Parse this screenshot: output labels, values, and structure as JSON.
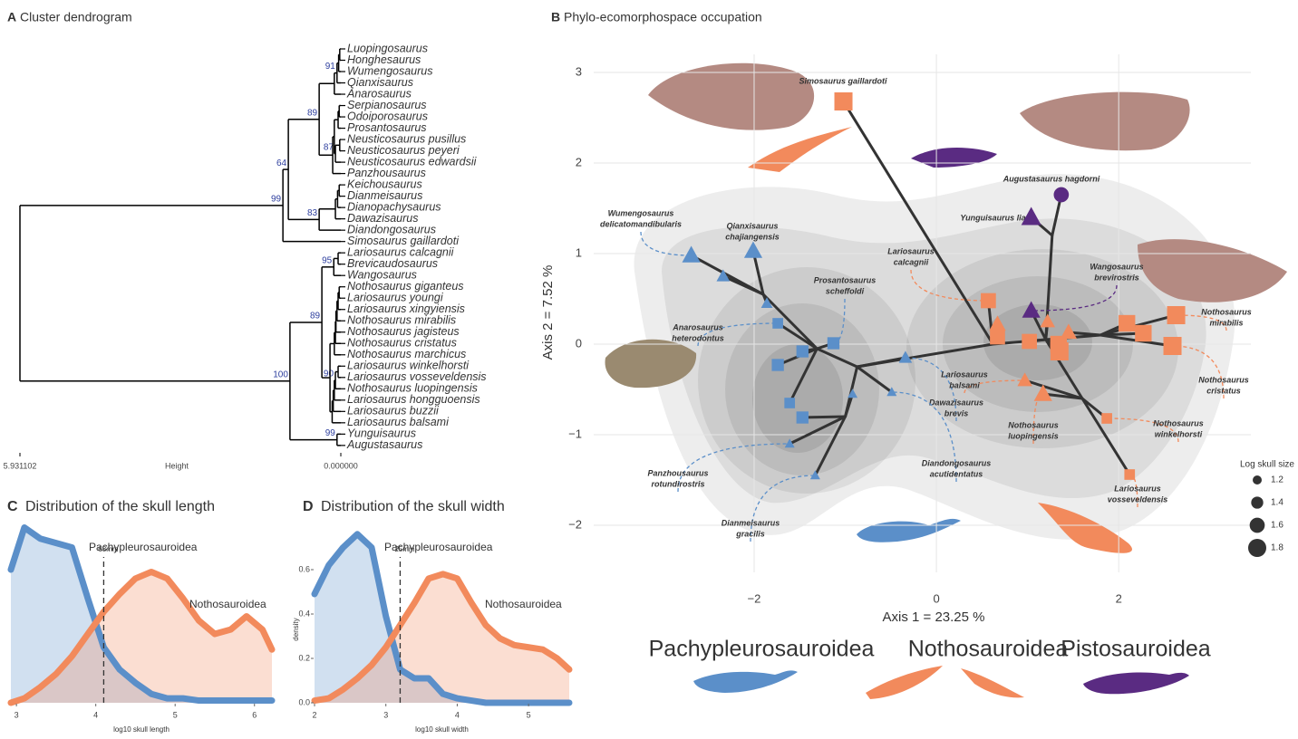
{
  "chart_data": [
    {
      "type": "dendrogram",
      "panel": "A",
      "title": "Cluster dendrogram",
      "leaves": [
        "Luopingosaurus",
        "Honghesaurus",
        "Wumengosaurus",
        "Qianxisaurus",
        "Anarosaurus",
        "Serpianosaurus",
        "Odoiporosaurus",
        "Prosantosaurus",
        "Neusticosaurus pusillus",
        "Neusticosaurus peyeri",
        "Neusticosaurus edwardsii",
        "Panzhousaurus",
        "Keichousaurus",
        "Dianmeisaurus",
        "Dianopachysaurus",
        "Dawazisaurus",
        "Diandongosaurus",
        "Simosaurus gaillardoti",
        "Lariosaurus calcagnii",
        "Brevicaudosaurus",
        "Wangosaurus",
        "Nothosaurus giganteus",
        "Lariosaurus youngi",
        "Lariosaurus xingyiensis",
        "Nothosaurus mirabilis",
        "Nothosaurus jagisteus",
        "Nothosaurus cristatus",
        "Nothosaurus marchicus",
        "Lariosaurus winkelhorsti",
        "Lariosaurus vosseveldensis",
        "Nothosaurus luopingensis",
        "Lariosaurus hongguoensis",
        "Lariosaurus buzzii",
        "Lariosaurus balsami",
        "Yunguisaurus",
        "Augustasaurus"
      ],
      "leaf_colors": [
        "#5b8fc9",
        "#5b8fc9",
        "#5b8fc9",
        "#5b8fc9",
        "#5b8fc9",
        "#5b8fc9",
        "#5b8fc9",
        "#5b8fc9",
        "#5b8fc9",
        "#5b8fc9",
        "#5b8fc9",
        "#5b8fc9",
        "#5b8fc9",
        "#5b8fc9",
        "#5b8fc9",
        "#5b8fc9",
        "#5b8fc9",
        "#f28a5c",
        "#f28a5c",
        "#f28a5c",
        "#5a2b82",
        "#f28a5c",
        "#f28a5c",
        "#f28a5c",
        "#f28a5c",
        "#f28a5c",
        "#f28a5c",
        "#f28a5c",
        "#f28a5c",
        "#f28a5c",
        "#f28a5c",
        "#f28a5c",
        "#f28a5c",
        "#f28a5c",
        "#5a2b82",
        "#5a2b82"
      ],
      "merge": [
        [
          -1,
          -2
        ],
        [
          1,
          -3
        ],
        [
          2,
          -4
        ],
        [
          3,
          -5
        ],
        [
          -6,
          -7
        ],
        [
          5,
          -8
        ],
        [
          -9,
          -10
        ],
        [
          7,
          -11
        ],
        [
          6,
          8
        ],
        [
          9,
          -12
        ],
        [
          4,
          10
        ],
        [
          -13,
          -14
        ],
        [
          12,
          -15
        ],
        [
          13,
          -16
        ],
        [
          14,
          -17
        ],
        [
          11,
          15
        ],
        [
          16,
          -18
        ],
        [
          -19,
          -20
        ],
        [
          18,
          -21
        ],
        [
          -22,
          -23
        ],
        [
          20,
          -24
        ],
        [
          21,
          -25
        ],
        [
          22,
          -26
        ],
        [
          23,
          -27
        ],
        [
          24,
          -28
        ],
        [
          -29,
          -30
        ],
        [
          26,
          -31
        ],
        [
          27,
          -32
        ],
        [
          28,
          -33
        ],
        [
          29,
          -34
        ],
        [
          25,
          30
        ],
        [
          19,
          31
        ],
        [
          -35,
          -36
        ],
        [
          32,
          33
        ],
        [
          17,
          34
        ]
      ],
      "height": [
        0.02,
        0.04,
        0.07,
        0.12,
        0.03,
        0.05,
        0.02,
        0.1,
        0.12,
        0.15,
        0.4,
        0.03,
        0.06,
        0.1,
        0.4,
        0.97,
        1.07,
        0.05,
        0.13,
        0.03,
        0.05,
        0.07,
        0.09,
        0.1,
        0.12,
        0.05,
        0.1,
        0.12,
        0.14,
        0.16,
        0.2,
        0.35,
        0.07,
        0.94,
        5.931102
      ],
      "support": [
        null,
        null,
        91,
        null,
        null,
        null,
        null,
        87,
        null,
        null,
        89,
        null,
        null,
        null,
        83,
        64,
        99,
        null,
        95,
        null,
        null,
        null,
        null,
        null,
        null,
        null,
        90,
        null,
        null,
        null,
        null,
        89,
        99,
        100,
        null
      ],
      "xlabel": "Height",
      "xlim": [
        5.931102,
        0
      ],
      "xticks": [
        5.931102,
        {
          "value": 0,
          "label": "0.000000"
        }
      ]
    },
    {
      "type": "scatter",
      "panel": "B",
      "title": "Phylo-ecomorphospace occupation",
      "xlabel": "Axis 1 =  23.25 %",
      "ylabel": "Axis 2 =  7.52 %",
      "xlim": [
        -3.76,
        3.45
      ],
      "ylim": [
        -2.52,
        3.2
      ],
      "xticks": [
        {
          "value": -2,
          "label": "−2"
        },
        0,
        2
      ],
      "yticks": [
        {
          "value": -2,
          "label": "−2"
        },
        {
          "value": -1,
          "label": "−1"
        },
        0,
        1,
        2,
        3
      ],
      "grid": true,
      "groups": [
        {
          "name": "Pachypleurosauroidea",
          "color": "#5b8fc9"
        },
        {
          "name": "Nothosauroidea",
          "color": "#f28a5c"
        },
        {
          "name": "Pistosauroidea",
          "color": "#5a2b82"
        }
      ],
      "size_legend": {
        "title": "Log skull size",
        "values": [
          1.2,
          1.4,
          1.6,
          1.8
        ]
      },
      "points": [
        {
          "x": -2.69,
          "y": 0.98,
          "size": 1.7,
          "shape": "triangle",
          "group": 0,
          "parent": 3,
          "label": [
            "Wumengosaurus",
            "delicatomandibularis"
          ]
        },
        {
          "x": -2.01,
          "y": 1.03,
          "size": 1.7,
          "shape": "triangle",
          "group": 0,
          "parent": 3,
          "label": [
            "Qianxisaurus",
            "chajiangensis"
          ]
        },
        {
          "x": -2.34,
          "y": 0.75,
          "size": 1.4,
          "shape": "triangle",
          "group": 0,
          "parent": 3
        },
        {
          "x": -1.86,
          "y": 0.45,
          "size": 1.3,
          "shape": "triangle",
          "group": 0,
          "parent": 3
        },
        {
          "x": -1.74,
          "y": 0.23,
          "size": 1.3,
          "shape": "square",
          "group": 0,
          "parent": 2,
          "label": [
            "Anarosaurus",
            "heterodontus"
          ]
        },
        {
          "x": -1.47,
          "y": -0.08,
          "size": 1.4,
          "shape": "square",
          "group": 0,
          "parent": 2
        },
        {
          "x": -1.13,
          "y": 0.01,
          "size": 1.4,
          "shape": "square",
          "group": 0,
          "parent": 2,
          "label": [
            "Prosantosaurus",
            "scheffoldi"
          ]
        },
        {
          "x": -1.74,
          "y": -0.23,
          "size": 1.4,
          "shape": "square",
          "group": 0,
          "parent": 2
        },
        {
          "x": -1.61,
          "y": -0.65,
          "size": 1.3,
          "shape": "square",
          "group": 0,
          "parent": 2
        },
        {
          "x": -1.47,
          "y": -0.81,
          "size": 1.4,
          "shape": "square",
          "group": 0,
          "parent": 4
        },
        {
          "x": -0.34,
          "y": -0.15,
          "size": 1.4,
          "shape": "triangle",
          "group": 0,
          "parent": 1,
          "label": [
            "Dawazisaurus",
            "brevis"
          ]
        },
        {
          "x": -0.92,
          "y": -0.55,
          "size": 1.2,
          "shape": "triangle",
          "group": 0,
          "parent": 4
        },
        {
          "x": -0.49,
          "y": -0.53,
          "size": 1.2,
          "shape": "triangle",
          "group": 0,
          "parent": 1,
          "label": [
            "Diandongosaurus",
            "acutidentatus"
          ]
        },
        {
          "x": -1.61,
          "y": -1.1,
          "size": 1.2,
          "shape": "triangle",
          "group": 0,
          "parent": 4,
          "label": [
            "Panzhousaurus",
            "rotundirostris"
          ]
        },
        {
          "x": -1.33,
          "y": -1.45,
          "size": 1.2,
          "shape": "triangle",
          "group": 0,
          "parent": 4,
          "label": [
            "Dianmeisaurus",
            "gracilis"
          ]
        },
        {
          "x": -1.02,
          "y": 2.68,
          "size": 1.8,
          "shape": "square",
          "group": 1,
          "parent": 0,
          "label": [
            "Simosaurus gaillardoti"
          ]
        },
        {
          "x": 0.57,
          "y": 0.48,
          "size": 1.6,
          "shape": "square",
          "group": 1,
          "parent": 0,
          "label": [
            "Lariosaurus",
            "calcagnii"
          ]
        },
        {
          "x": 0.67,
          "y": 0.22,
          "size": 1.6,
          "shape": "triangle",
          "group": 1,
          "parent": 0
        },
        {
          "x": 0.67,
          "y": 0.08,
          "size": 1.6,
          "shape": "square",
          "group": 1,
          "parent": 0
        },
        {
          "x": 1.02,
          "y": 0.03,
          "size": 1.6,
          "shape": "square",
          "group": 1,
          "parent": 5
        },
        {
          "x": 1.22,
          "y": 0.25,
          "size": 1.5,
          "shape": "triangle",
          "group": 1,
          "parent": 5
        },
        {
          "x": 1.45,
          "y": 0.13,
          "size": 1.6,
          "shape": "triangle",
          "group": 1,
          "parent": 7
        },
        {
          "x": 1.34,
          "y": 0.0,
          "size": 1.7,
          "shape": "square",
          "group": 1,
          "parent": 5
        },
        {
          "x": 1.35,
          "y": -0.08,
          "size": 1.8,
          "shape": "square",
          "group": 1,
          "parent": 5
        },
        {
          "x": 2.09,
          "y": 0.23,
          "size": 1.7,
          "shape": "square",
          "group": 1,
          "parent": 7
        },
        {
          "x": 2.27,
          "y": 0.12,
          "size": 1.7,
          "shape": "square",
          "group": 1,
          "parent": 7
        },
        {
          "x": 2.63,
          "y": 0.32,
          "size": 1.8,
          "shape": "square",
          "group": 1,
          "parent": 7,
          "label": [
            "Nothosaurus",
            "mirabilis"
          ]
        },
        {
          "x": 2.59,
          "y": -0.02,
          "size": 1.8,
          "shape": "square",
          "group": 1,
          "parent": 7,
          "label": [
            "Nothosaurus",
            "cristatus"
          ]
        },
        {
          "x": 0.97,
          "y": -0.4,
          "size": 1.5,
          "shape": "triangle",
          "group": 1,
          "parent": 8,
          "label": [
            "Lariosaurus",
            "balsami"
          ]
        },
        {
          "x": 1.17,
          "y": -0.55,
          "size": 1.7,
          "shape": "triangle",
          "group": 1,
          "parent": 8,
          "label": [
            "Nothosaurus",
            "luopingensis"
          ]
        },
        {
          "x": 1.87,
          "y": -0.82,
          "size": 1.3,
          "shape": "square",
          "group": 1,
          "parent": 8,
          "label": [
            "Nothosaurus",
            "winkelhorsti"
          ]
        },
        {
          "x": 2.12,
          "y": -1.44,
          "size": 1.3,
          "shape": "square",
          "group": 1,
          "parent": 8,
          "label": [
            "Lariosaurus",
            "vosseveldensis"
          ]
        },
        {
          "x": 1.37,
          "y": 1.65,
          "size": 1.6,
          "shape": "circle",
          "group": 2,
          "parent": 6,
          "label": [
            "Augustasaurus hagdorni"
          ]
        },
        {
          "x": 1.04,
          "y": 1.4,
          "size": 1.8,
          "shape": "triangle",
          "group": 2,
          "parent": 6,
          "label": [
            "Yunguisaurus liae"
          ]
        },
        {
          "x": 1.04,
          "y": 0.37,
          "size": 1.7,
          "shape": "triangle",
          "group": 2,
          "parent": 5,
          "label": [
            "Wangosaurus",
            "brevirostris"
          ]
        }
      ],
      "nodes": [
        {
          "x": 0.62,
          "y": 0.0,
          "parent": null
        },
        {
          "x": -0.87,
          "y": -0.25,
          "parent": 0
        },
        {
          "x": -1.31,
          "y": -0.05,
          "parent": 1
        },
        {
          "x": -1.9,
          "y": 0.55,
          "parent": 2
        },
        {
          "x": -1.0,
          "y": -0.8,
          "parent": 1
        },
        {
          "x": 1.2,
          "y": 0.05,
          "parent": 0
        },
        {
          "x": 1.27,
          "y": 1.2,
          "parent": 5
        },
        {
          "x": 1.8,
          "y": 0.1,
          "parent": 5
        },
        {
          "x": 1.6,
          "y": -0.6,
          "parent": 5
        }
      ]
    },
    {
      "type": "density",
      "panel": "C",
      "title": "Distribution of the skull length",
      "xlabel": "log10 skull length",
      "xlim": [
        2.93,
        6.22
      ],
      "ylim": [
        0,
        0.8
      ],
      "xticks": [
        3,
        4,
        5,
        6
      ],
      "x": [
        2.93,
        3.1,
        3.3,
        3.5,
        3.7,
        3.9,
        4.1,
        4.3,
        4.5,
        4.7,
        4.9,
        5.1,
        5.3,
        5.5,
        5.7,
        5.9,
        6.1,
        6.22
      ],
      "series": [
        {
          "name": "Pachypleurosauroidea",
          "color": "#5b8fc9",
          "values": [
            0.6,
            0.79,
            0.74,
            0.72,
            0.7,
            0.47,
            0.25,
            0.15,
            0.09,
            0.04,
            0.02,
            0.02,
            0.01,
            0.01,
            0.01,
            0.01,
            0.01,
            0.01
          ]
        },
        {
          "name": "Nothosauroidea",
          "color": "#f28a5c",
          "values": [
            0.0,
            0.02,
            0.07,
            0.13,
            0.21,
            0.31,
            0.41,
            0.49,
            0.56,
            0.59,
            0.56,
            0.47,
            0.37,
            0.31,
            0.33,
            0.39,
            0.33,
            0.24
          ]
        }
      ],
      "vline": {
        "value": 4.1,
        "label": "68mm"
      }
    },
    {
      "type": "density",
      "panel": "D",
      "title": "Distribution of the skull width",
      "xlabel": "log10 skull width",
      "ylabel": "density",
      "xlim": [
        2,
        5.57
      ],
      "ylim": [
        0,
        0.8
      ],
      "xticks": [
        2,
        3,
        4,
        5
      ],
      "yticks": [
        {
          "value": 0,
          "label": "0.0"
        },
        {
          "value": 0.2,
          "label": "0.2"
        },
        {
          "value": 0.4,
          "label": "0.4"
        },
        {
          "value": 0.6,
          "label": "0.6"
        }
      ],
      "x": [
        2.0,
        2.2,
        2.4,
        2.6,
        2.8,
        3.0,
        3.2,
        3.4,
        3.6,
        3.8,
        4.0,
        4.2,
        4.4,
        4.6,
        4.8,
        5.0,
        5.2,
        5.4,
        5.57
      ],
      "series": [
        {
          "name": "Pachypleurosauroidea",
          "color": "#5b8fc9",
          "values": [
            0.49,
            0.62,
            0.7,
            0.76,
            0.7,
            0.39,
            0.15,
            0.11,
            0.11,
            0.04,
            0.02,
            0.01,
            0,
            0,
            0,
            0,
            0,
            0,
            0
          ]
        },
        {
          "name": "Nothosauroidea",
          "color": "#f28a5c",
          "values": [
            0.01,
            0.02,
            0.06,
            0.11,
            0.17,
            0.25,
            0.35,
            0.45,
            0.56,
            0.58,
            0.56,
            0.45,
            0.35,
            0.29,
            0.26,
            0.25,
            0.24,
            0.2,
            0.15
          ]
        }
      ],
      "vline": {
        "value": 3.2,
        "label": "25mm"
      }
    }
  ]
}
